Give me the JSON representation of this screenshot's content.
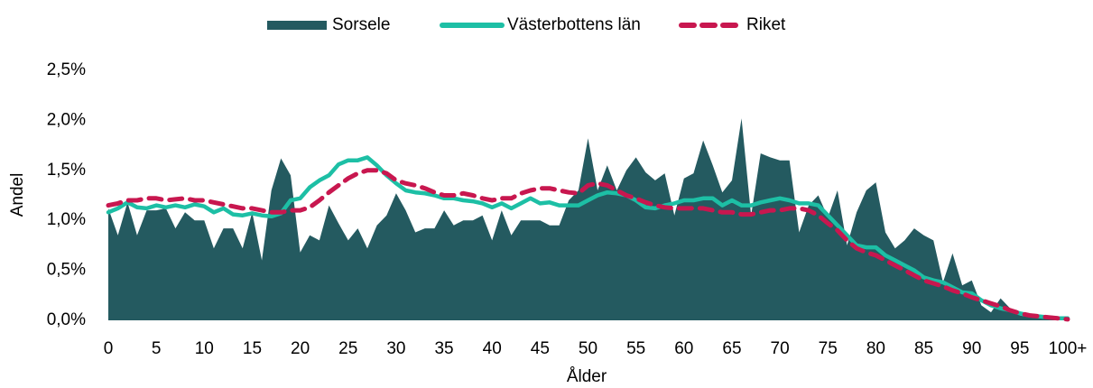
{
  "chart_data": {
    "type": "area_line",
    "xlabel": "Ålder",
    "ylabel": "Andel",
    "categories": [
      "0",
      null,
      null,
      null,
      null,
      "5",
      null,
      null,
      null,
      null,
      "10",
      null,
      null,
      null,
      null,
      "15",
      null,
      null,
      null,
      null,
      "20",
      null,
      null,
      null,
      null,
      "25",
      null,
      null,
      null,
      null,
      "30",
      null,
      null,
      null,
      null,
      "35",
      null,
      null,
      null,
      null,
      "40",
      null,
      null,
      null,
      null,
      "45",
      null,
      null,
      null,
      null,
      "50",
      null,
      null,
      null,
      null,
      "55",
      null,
      null,
      null,
      null,
      "60",
      null,
      null,
      null,
      null,
      "65",
      null,
      null,
      null,
      null,
      "70",
      null,
      null,
      null,
      null,
      "75",
      null,
      null,
      null,
      null,
      "80",
      null,
      null,
      null,
      null,
      "85",
      null,
      null,
      null,
      null,
      "90",
      null,
      null,
      null,
      null,
      "95",
      null,
      null,
      null,
      null,
      "100+"
    ],
    "ylim": [
      0,
      2.5
    ],
    "yticks": [
      {
        "value": 0,
        "label": "0,0%"
      },
      {
        "value": 0.5,
        "label": "0,5%"
      },
      {
        "value": 1,
        "label": "1,0%"
      },
      {
        "value": 1.5,
        "label": "1,5%"
      },
      {
        "value": 2,
        "label": "2,0%"
      },
      {
        "value": 2.5,
        "label": "2,5%"
      }
    ],
    "grid": false,
    "legend": "top",
    "series": [
      {
        "name": "Sorsele",
        "style": "area",
        "color": "#245a60",
        "values": [
          1.12,
          0.85,
          1.18,
          0.85,
          1.1,
          1.1,
          1.12,
          0.92,
          1.08,
          1.0,
          1.0,
          0.72,
          0.92,
          0.92,
          0.72,
          1.08,
          0.6,
          1.3,
          1.62,
          1.45,
          0.68,
          0.85,
          0.8,
          1.15,
          0.97,
          0.8,
          0.92,
          0.72,
          0.95,
          1.05,
          1.27,
          1.1,
          0.88,
          0.92,
          0.92,
          1.1,
          0.95,
          1.0,
          1.0,
          1.05,
          0.8,
          1.1,
          0.85,
          1.0,
          1.0,
          1.0,
          0.95,
          0.95,
          1.2,
          1.3,
          1.82,
          1.3,
          1.55,
          1.3,
          1.5,
          1.63,
          1.48,
          1.4,
          1.47,
          1.05,
          1.42,
          1.47,
          1.8,
          1.55,
          1.28,
          1.4,
          2.02,
          1.05,
          1.67,
          1.63,
          1.6,
          1.6,
          0.88,
          1.15,
          1.25,
          1.03,
          1.3,
          0.75,
          1.08,
          1.3,
          1.38,
          0.88,
          0.72,
          0.8,
          0.92,
          0.85,
          0.8,
          0.38,
          0.67,
          0.35,
          0.4,
          0.15,
          0.08,
          0.22,
          0.12,
          0.05,
          0.03,
          0.04,
          0.02,
          0.01,
          0.02
        ]
      },
      {
        "name": "Västerbottens län",
        "style": "line",
        "color": "#1dbfa5",
        "values": [
          1.08,
          1.12,
          1.18,
          1.13,
          1.12,
          1.15,
          1.13,
          1.15,
          1.13,
          1.16,
          1.14,
          1.08,
          1.12,
          1.06,
          1.05,
          1.07,
          1.05,
          1.04,
          1.07,
          1.2,
          1.22,
          1.33,
          1.4,
          1.45,
          1.56,
          1.6,
          1.6,
          1.63,
          1.55,
          1.45,
          1.37,
          1.3,
          1.28,
          1.27,
          1.25,
          1.22,
          1.22,
          1.2,
          1.19,
          1.17,
          1.13,
          1.17,
          1.12,
          1.17,
          1.22,
          1.17,
          1.18,
          1.15,
          1.15,
          1.15,
          1.2,
          1.25,
          1.28,
          1.27,
          1.25,
          1.2,
          1.13,
          1.12,
          1.15,
          1.17,
          1.2,
          1.2,
          1.22,
          1.22,
          1.15,
          1.2,
          1.15,
          1.15,
          1.18,
          1.2,
          1.22,
          1.2,
          1.17,
          1.17,
          1.15,
          1.05,
          0.95,
          0.85,
          0.75,
          0.73,
          0.73,
          0.65,
          0.6,
          0.55,
          0.5,
          0.43,
          0.4,
          0.38,
          0.33,
          0.28,
          0.27,
          0.2,
          0.15,
          0.12,
          0.1,
          0.07,
          0.05,
          0.04,
          0.03,
          0.02,
          0.02
        ]
      },
      {
        "name": "Riket",
        "style": "dashed",
        "color": "#c8174f",
        "values": [
          1.15,
          1.17,
          1.2,
          1.2,
          1.22,
          1.22,
          1.2,
          1.21,
          1.22,
          1.2,
          1.2,
          1.18,
          1.16,
          1.14,
          1.12,
          1.12,
          1.1,
          1.08,
          1.08,
          1.1,
          1.1,
          1.13,
          1.2,
          1.28,
          1.35,
          1.42,
          1.47,
          1.5,
          1.5,
          1.47,
          1.4,
          1.37,
          1.35,
          1.32,
          1.28,
          1.25,
          1.25,
          1.27,
          1.25,
          1.22,
          1.2,
          1.22,
          1.22,
          1.27,
          1.3,
          1.32,
          1.32,
          1.3,
          1.28,
          1.27,
          1.35,
          1.37,
          1.35,
          1.3,
          1.25,
          1.22,
          1.18,
          1.15,
          1.13,
          1.12,
          1.12,
          1.12,
          1.12,
          1.1,
          1.08,
          1.08,
          1.06,
          1.06,
          1.08,
          1.1,
          1.1,
          1.12,
          1.12,
          1.1,
          1.05,
          0.97,
          0.9,
          0.8,
          0.72,
          0.68,
          0.65,
          0.6,
          0.55,
          0.5,
          0.45,
          0.4,
          0.37,
          0.34,
          0.3,
          0.27,
          0.23,
          0.2,
          0.17,
          0.14,
          0.1,
          0.07,
          0.05,
          0.04,
          0.03,
          0.02,
          0.01
        ]
      }
    ]
  }
}
